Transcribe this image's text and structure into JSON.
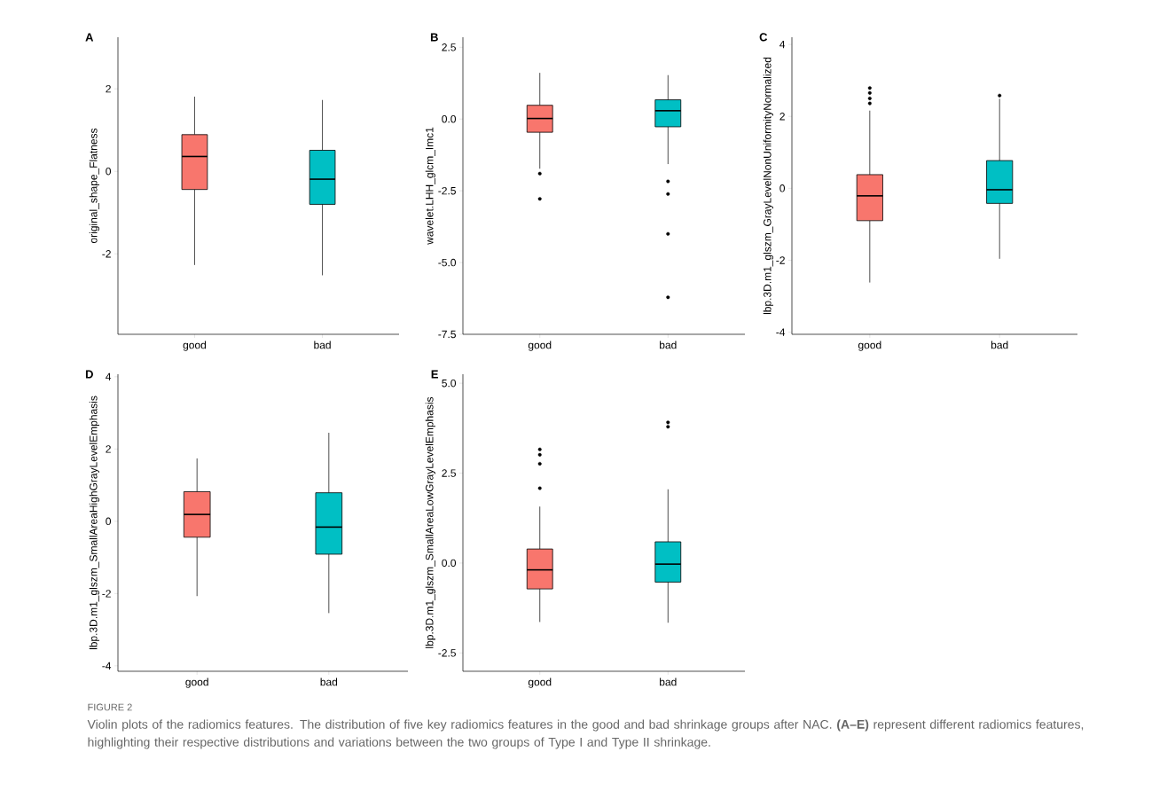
{
  "chart_data": [
    {
      "type": "box",
      "title": "A",
      "ylabel": "original_shape_Flatness",
      "categories": [
        "good",
        "bad"
      ],
      "colors": [
        "#f8766d",
        "#00bfc4"
      ],
      "boxes": [
        {
          "low": -2.27,
          "q1": -0.44,
          "median": 0.36,
          "q3": 0.89,
          "high": 1.81
        },
        {
          "low": -2.52,
          "q1": -0.8,
          "median": -0.19,
          "q3": 0.51,
          "high": 1.73
        }
      ],
      "ylim": [
        -3.95,
        3.25
      ],
      "yticks": [
        -2,
        0,
        2
      ],
      "annotations": [
        "FIGURE 2",
        "Violin plots of the radiomics features. The distribution of five key radiomics features in the good and bad shrinkage groups after NAC. **(A–E)** represent different radiomics features, highlighting their respective distributions and variations between the two groups of Type I and Type II shrinkage."
      ]
    },
    {
      "type": "box",
      "title": "B",
      "ylabel": "wavelet.LHH_glcm_Imc1",
      "categories": [
        "good",
        "bad"
      ],
      "colors": [
        "#f8766d",
        "#00bfc4"
      ],
      "boxes": [
        {
          "low": -1.73,
          "q1": -0.46,
          "median": 0.02,
          "q3": 0.48,
          "high": 1.61,
          "outliers": [
            -1.9,
            -2.78
          ]
        },
        {
          "low": -1.57,
          "q1": -0.27,
          "median": 0.29,
          "q3": 0.67,
          "high": 1.53,
          "outliers": [
            -2.17,
            -2.61,
            -4.0,
            -6.21
          ]
        }
      ],
      "ylim": [
        -7.5,
        2.85
      ],
      "yticks": [
        {
          "value": -7.5,
          "label": "-7.5"
        },
        {
          "value": -5,
          "label": "-5.0"
        },
        -2.5,
        {
          "value": 0,
          "label": "0.0"
        },
        2.5
      ]
    },
    {
      "type": "box",
      "title": "C",
      "ylabel": "lbp.3D.m1_glszm_GrayLevelNonUniformityNormalized",
      "categories": [
        "good",
        "bad"
      ],
      "colors": [
        "#f8766d",
        "#00bfc4"
      ],
      "boxes": [
        {
          "low": -2.62,
          "q1": -0.9,
          "median": -0.21,
          "q3": 0.38,
          "high": 2.16,
          "outliers": [
            2.36,
            2.5,
            2.65,
            2.79
          ]
        },
        {
          "low": -1.96,
          "q1": -0.42,
          "median": -0.04,
          "q3": 0.77,
          "high": 2.49,
          "outliers": [
            2.58
          ]
        }
      ],
      "ylim": [
        -4.06,
        4.2
      ],
      "yticks": [
        -4,
        -2,
        0,
        2,
        4
      ]
    },
    {
      "type": "box",
      "title": "D",
      "ylabel": "lbp.3D.m1_glszm_SmallAreaHighGrayLevelEmphasis",
      "categories": [
        "good",
        "bad"
      ],
      "colors": [
        "#f8766d",
        "#00bfc4"
      ],
      "boxes": [
        {
          "low": -2.07,
          "q1": -0.44,
          "median": 0.19,
          "q3": 0.82,
          "high": 1.74
        },
        {
          "low": -2.54,
          "q1": -0.91,
          "median": -0.16,
          "q3": 0.79,
          "high": 2.45
        }
      ],
      "ylim": [
        -4.15,
        4.07
      ],
      "yticks": [
        -4,
        -2,
        0,
        2,
        4
      ]
    },
    {
      "type": "box",
      "title": "E",
      "ylabel": "lbp.3D.m1_glszm_SmallAreaLowGrayLevelEmphasis",
      "categories": [
        "good",
        "bad"
      ],
      "colors": [
        "#f8766d",
        "#00bfc4"
      ],
      "boxes": [
        {
          "low": -1.64,
          "q1": -0.72,
          "median": -0.19,
          "q3": 0.39,
          "high": 1.57,
          "outliers": [
            2.08,
            2.76,
            3.01,
            3.16
          ]
        },
        {
          "low": -1.66,
          "q1": -0.53,
          "median": -0.03,
          "q3": 0.59,
          "high": 2.05,
          "outliers": [
            3.79,
            3.91
          ]
        }
      ],
      "ylim": [
        -3.01,
        5.25
      ],
      "yticks": [
        -2.5,
        {
          "value": 0,
          "label": "0.0"
        },
        2.5,
        {
          "value": 5,
          "label": "5.0"
        }
      ]
    }
  ]
}
